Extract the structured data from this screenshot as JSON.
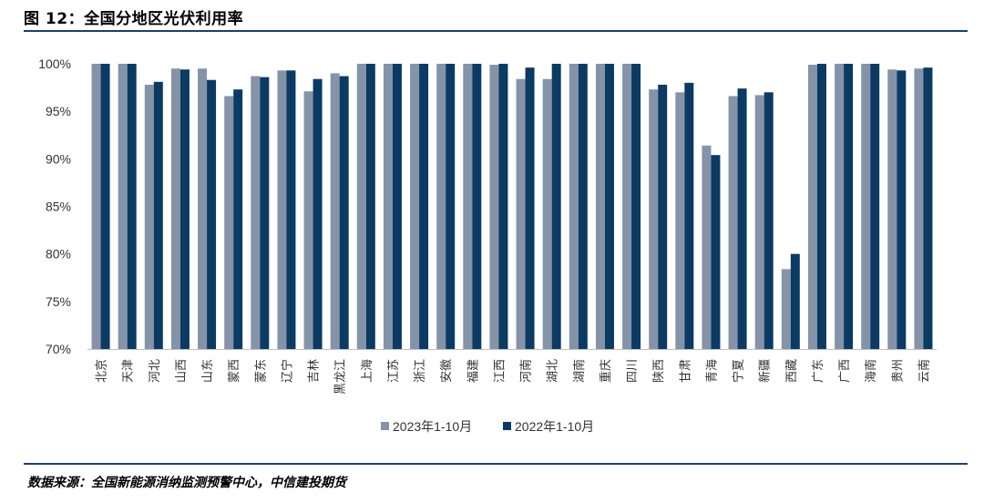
{
  "title": "图 12：全国分地区光伏利用率",
  "source": "数据来源：全国新能源消纳监测预警中心，中信建投期货",
  "colors": {
    "series_2023": "#8593a8",
    "series_2022": "#0b3a63",
    "axis": "#bfbfbf",
    "rule": "#1f3f66"
  },
  "chart_data": {
    "type": "bar",
    "title": "全国分地区光伏利用率",
    "xlabel": "",
    "ylabel": "",
    "ylim": [
      70,
      100
    ],
    "yticks": [
      "70%",
      "75%",
      "80%",
      "85%",
      "90%",
      "95%",
      "100%"
    ],
    "grid": false,
    "legend": "bottom",
    "categories": [
      "北京",
      "天津",
      "河北",
      "山西",
      "山东",
      "蒙西",
      "蒙东",
      "辽宁",
      "吉林",
      "黑龙江",
      "上海",
      "江苏",
      "浙江",
      "安徽",
      "福建",
      "江西",
      "河南",
      "湖北",
      "湖南",
      "重庆",
      "四川",
      "陕西",
      "甘肃",
      "青海",
      "宁夏",
      "新疆",
      "西藏",
      "广东",
      "广西",
      "海南",
      "贵州",
      "云南"
    ],
    "series": [
      {
        "name": "2023年1-10月",
        "values": [
          100,
          100,
          97.8,
          99.5,
          99.5,
          96.6,
          98.7,
          99.3,
          97.1,
          99.0,
          100,
          100,
          100,
          100,
          100,
          99.9,
          98.4,
          98.4,
          100,
          100,
          100,
          97.3,
          97.0,
          91.4,
          96.6,
          96.7,
          78.4,
          99.9,
          100,
          100,
          99.4,
          99.5
        ]
      },
      {
        "name": "2022年1-10月",
        "values": [
          100,
          100,
          98.1,
          99.4,
          98.3,
          97.3,
          98.6,
          99.3,
          98.4,
          98.7,
          100,
          100,
          100,
          100,
          100,
          100,
          99.6,
          100,
          100,
          100,
          100,
          97.8,
          98.0,
          90.4,
          97.4,
          97.0,
          80.0,
          100,
          100,
          100,
          99.3,
          99.6
        ]
      }
    ]
  }
}
